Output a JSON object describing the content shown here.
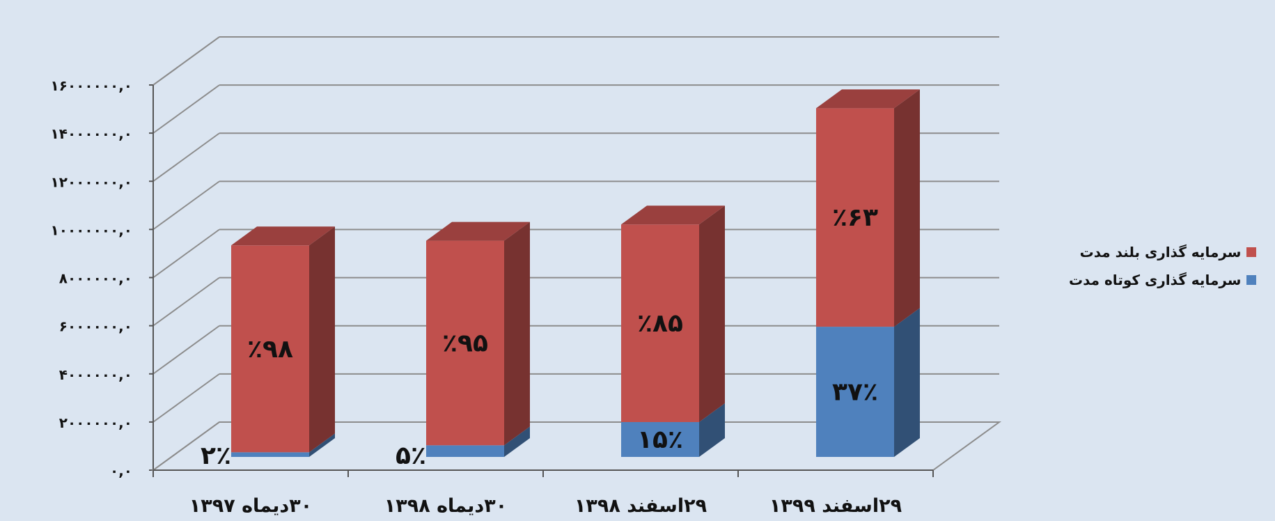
{
  "chart_data": {
    "type": "bar",
    "stacked": true,
    "three_d": true,
    "categories": [
      "۳۰دیماه ۱۳۹۷",
      "۳۰دیماه ۱۳۹۸",
      "۲۹اسفند ۱۳۹۸",
      "۲۹اسفند ۱۳۹۹"
    ],
    "series": [
      {
        "name": "سرمایه گذاری کوتاه  مدت",
        "color": "#4f81bd",
        "values": [
          200000,
          500000,
          1500000,
          5600000
        ],
        "labels": [
          "۲٪",
          "۵٪",
          "۱۵٪",
          "۳۷٪"
        ]
      },
      {
        "name": "سرمایه گذاری بلند مدت",
        "color": "#c0504d",
        "values": [
          8900000,
          8800000,
          8500000,
          9400000
        ],
        "labels": [
          "٪۹۸",
          "٪۹۵",
          "٪۸۵",
          "٪۶۳"
        ]
      }
    ],
    "yticks": [
      "۰,۰",
      "۲۰۰۰۰۰۰,۰",
      "۴۰۰۰۰۰۰,۰",
      "۶۰۰۰۰۰۰,۰",
      "۸۰۰۰۰۰۰,۰",
      "۱۰۰۰۰۰۰۰,۰",
      "۱۲۰۰۰۰۰۰,۰",
      "۱۴۰۰۰۰۰۰,۰",
      "۱۶۰۰۰۰۰۰,۰"
    ],
    "ylim": [
      0,
      16000000
    ],
    "grid": true,
    "legend_position": "right",
    "title": "",
    "xlabel": "",
    "ylabel": ""
  }
}
